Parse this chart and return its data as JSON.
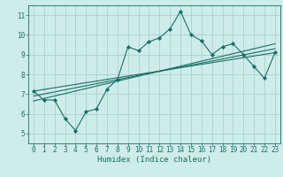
{
  "title": "",
  "xlabel": "Humidex (Indice chaleur)",
  "bg_color": "#ceecea",
  "grid_color": "#aed4d2",
  "line_color": "#1a6e64",
  "xlim": [
    -0.5,
    23.5
  ],
  "ylim": [
    4.5,
    11.5
  ],
  "xticks": [
    0,
    1,
    2,
    3,
    4,
    5,
    6,
    7,
    8,
    9,
    10,
    11,
    12,
    13,
    14,
    15,
    16,
    17,
    18,
    19,
    20,
    21,
    22,
    23
  ],
  "yticks": [
    5,
    6,
    7,
    8,
    9,
    10,
    11
  ],
  "main_x": [
    0,
    1,
    2,
    3,
    4,
    5,
    6,
    7,
    8,
    9,
    10,
    11,
    12,
    13,
    14,
    15,
    16,
    17,
    18,
    19,
    20,
    21,
    22,
    23
  ],
  "main_y": [
    7.15,
    6.7,
    6.7,
    5.75,
    5.15,
    6.1,
    6.25,
    7.25,
    7.75,
    9.4,
    9.2,
    9.65,
    9.85,
    10.3,
    11.2,
    10.0,
    9.7,
    9.0,
    9.4,
    9.55,
    9.0,
    8.4,
    7.8,
    9.1
  ],
  "reg_line1_x": [
    0,
    23
  ],
  "reg_line1_y": [
    7.15,
    9.1
  ],
  "reg_line2_x": [
    0,
    23
  ],
  "reg_line2_y": [
    6.9,
    9.3
  ],
  "reg_line3_x": [
    0,
    23
  ],
  "reg_line3_y": [
    6.65,
    9.55
  ],
  "marker": "D",
  "marker_size": 2.2,
  "line_width": 0.8,
  "tick_fontsize": 5.5,
  "xlabel_fontsize": 6.5
}
